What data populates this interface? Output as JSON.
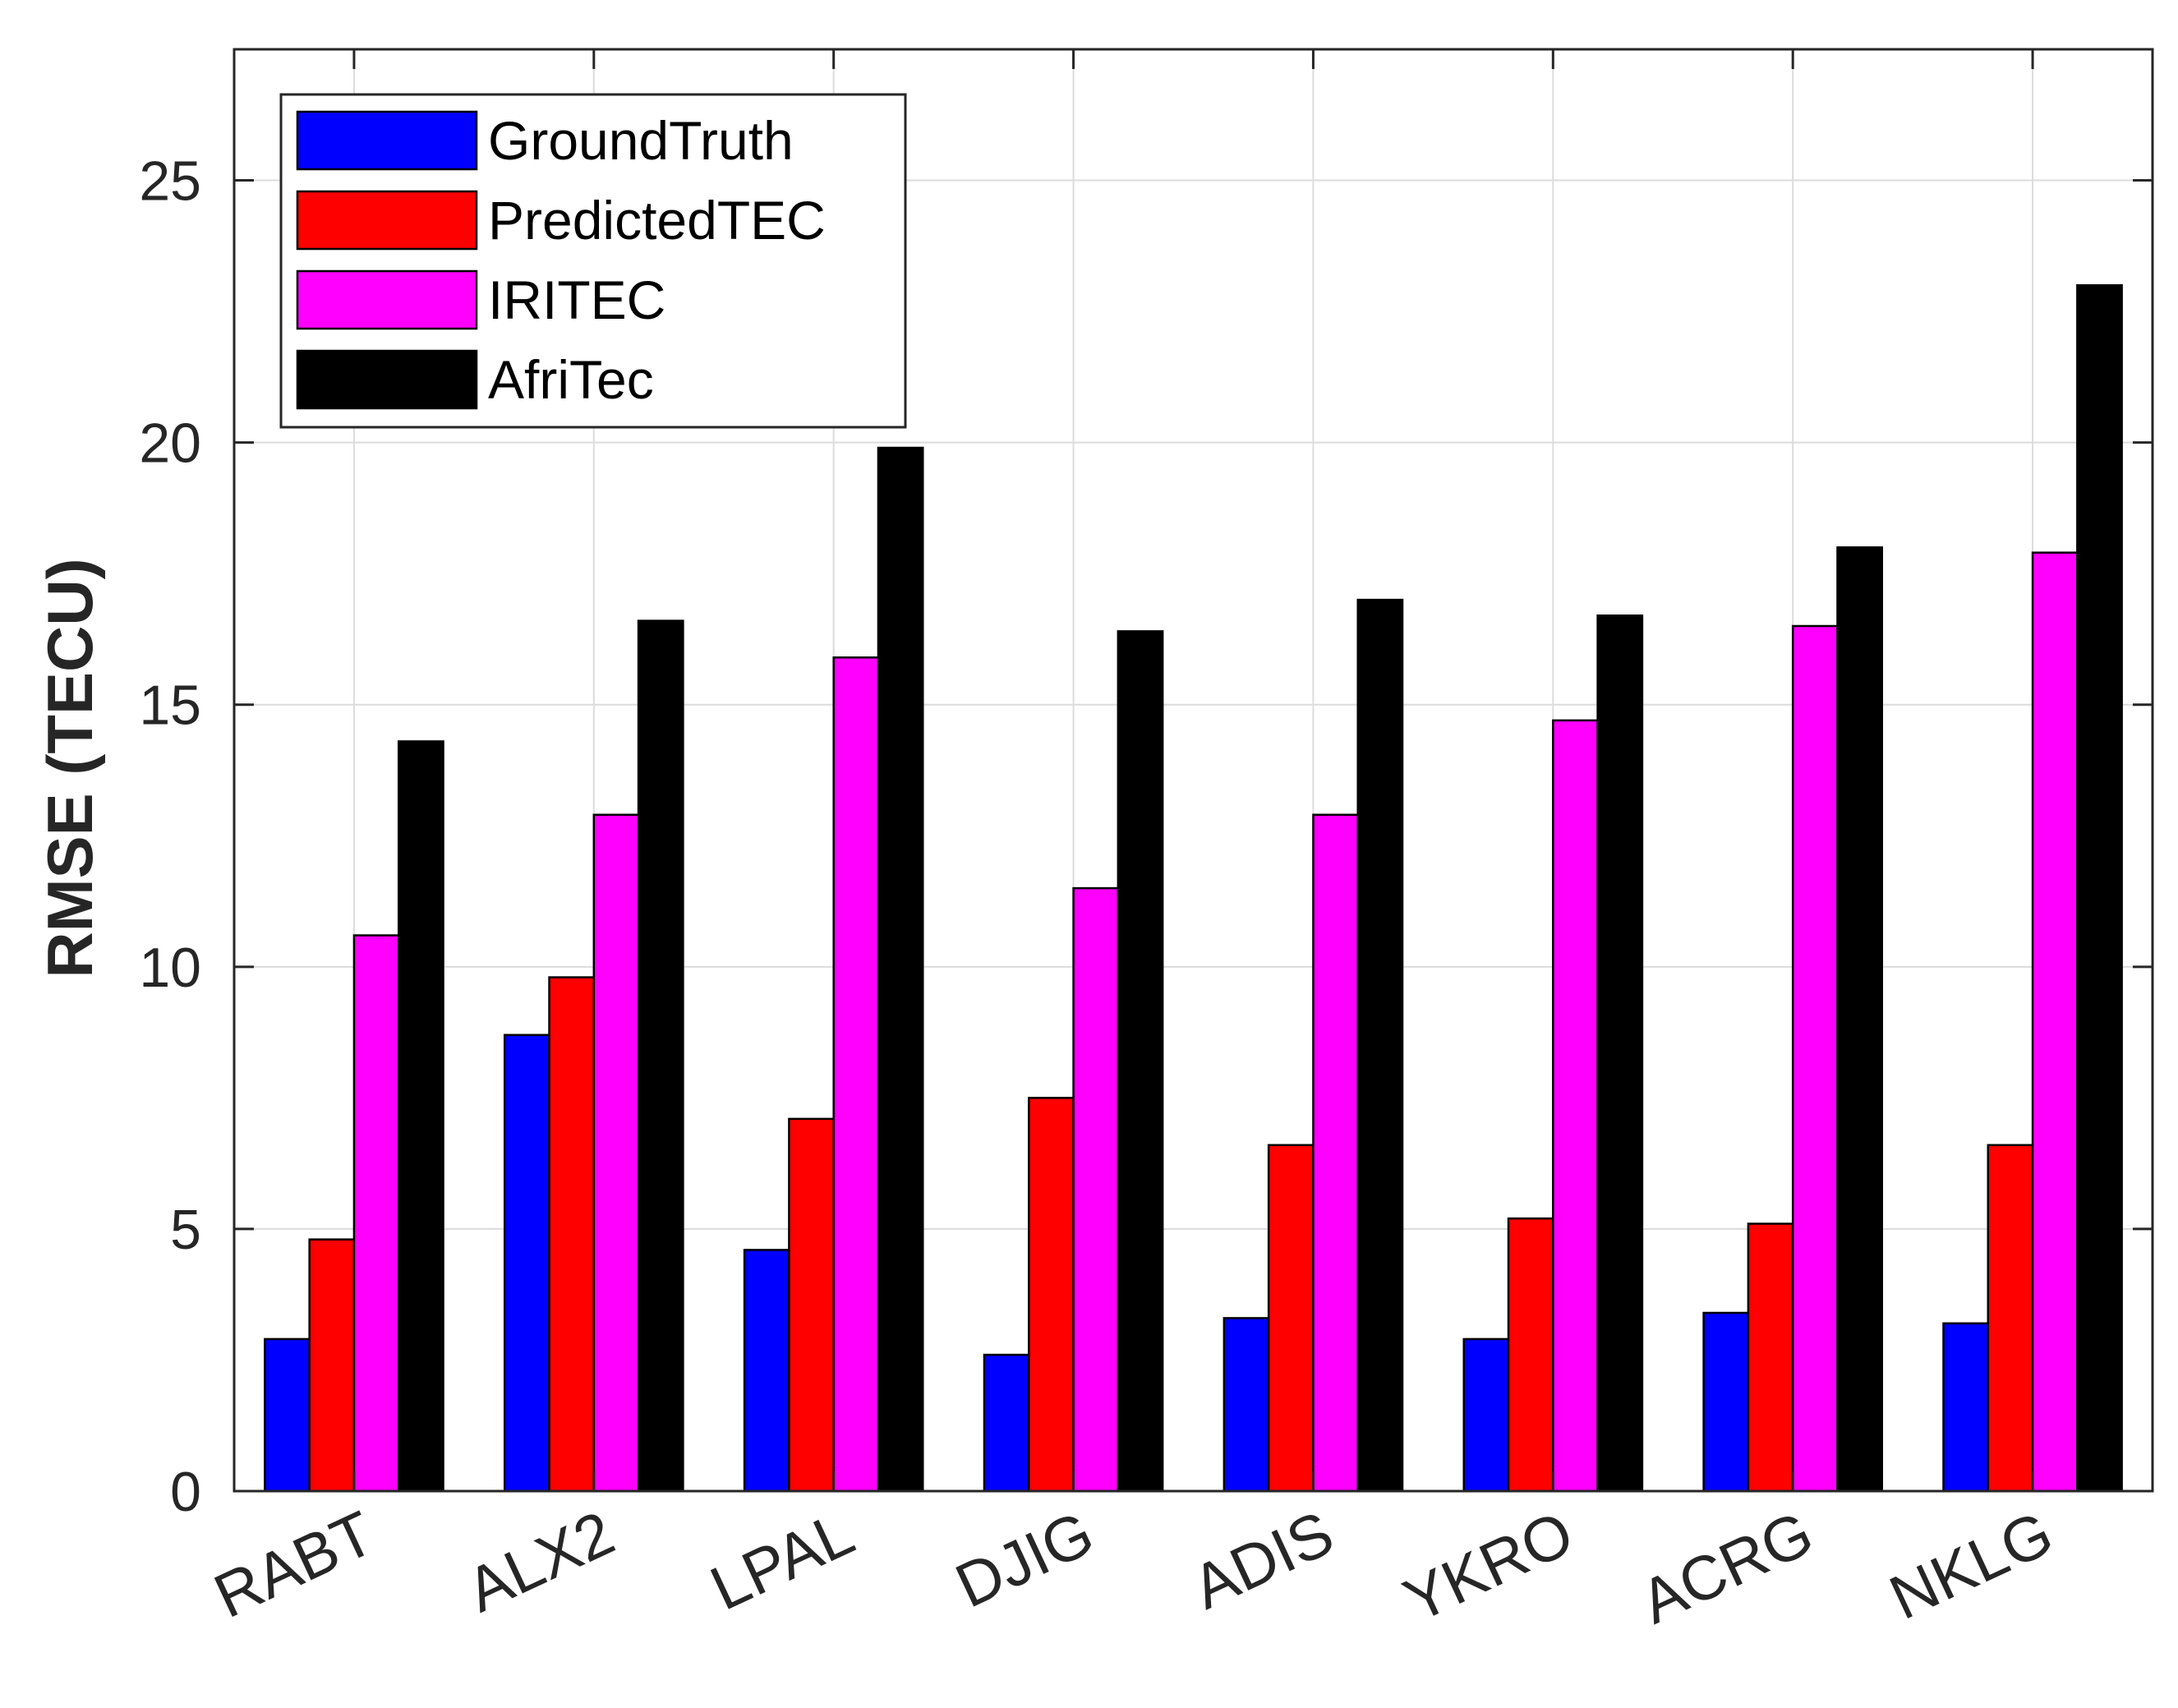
{
  "chart_data": {
    "type": "bar",
    "title": "",
    "xlabel": "",
    "ylabel": "RMSE (TECU)",
    "ylim": [
      0,
      27.5
    ],
    "yticks": [
      0,
      5,
      10,
      15,
      20,
      25
    ],
    "grid": true,
    "legend_position": "top-left",
    "categories": [
      "RABT",
      "ALX2",
      "LPAL",
      "DJIG",
      "ADIS",
      "YKRO",
      "ACRG",
      "NKLG"
    ],
    "series": [
      {
        "name": "GroundTruth",
        "color": "#0000ff",
        "values": [
          2.9,
          8.7,
          4.6,
          2.6,
          3.3,
          2.9,
          3.4,
          3.2
        ]
      },
      {
        "name": "PredictedTEC",
        "color": "#ff0000",
        "values": [
          4.8,
          9.8,
          7.1,
          7.5,
          6.6,
          5.2,
          5.1,
          6.6
        ]
      },
      {
        "name": "IRITEC",
        "color": "#ff00ff",
        "values": [
          10.6,
          12.9,
          15.9,
          11.5,
          12.9,
          14.7,
          16.5,
          17.9
        ]
      },
      {
        "name": "AfriTec",
        "color": "#000000",
        "values": [
          14.3,
          16.6,
          19.9,
          16.4,
          17.0,
          16.7,
          18.0,
          23.0
        ]
      }
    ]
  }
}
